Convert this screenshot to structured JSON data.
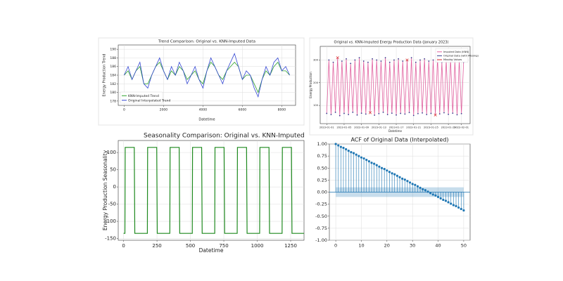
{
  "chart_data": [
    {
      "type": "line",
      "title": "Trend Comparison: Original vs. KNN-Imputed Data",
      "xlabel": "Datetime",
      "ylabel": "Energy Production Trend",
      "x": [
        0,
        200,
        400,
        600,
        800,
        1000,
        1200,
        1400,
        1600,
        1800,
        2000,
        2200,
        2400,
        2600,
        2800,
        3000,
        3200,
        3400,
        3600,
        3800,
        4000,
        4200,
        4400,
        4600,
        4800,
        5000,
        5200,
        5400,
        5600,
        5800,
        6000,
        6200,
        6400,
        6600,
        6800,
        7000,
        7200,
        7400,
        7600,
        7800,
        8000,
        8200,
        8400
      ],
      "series": [
        {
          "name": "KNN-Imputed Trend",
          "color": "#2ca02c",
          "values": [
            184,
            185,
            183,
            185,
            186,
            182,
            182,
            184,
            186,
            187,
            185,
            183,
            185,
            184,
            186,
            185,
            183,
            184,
            185,
            183,
            182,
            185,
            187,
            186,
            184,
            183,
            185,
            186,
            187,
            186,
            183,
            184,
            184,
            182,
            180,
            183,
            185,
            184,
            186,
            187,
            185,
            185,
            184
          ]
        },
        {
          "name": "Original Interpolated Trend",
          "color": "#3346d3",
          "values": [
            184,
            186,
            183,
            185,
            187,
            182,
            181,
            184,
            186,
            188,
            185,
            183,
            186,
            184,
            187,
            185,
            182,
            184,
            186,
            183,
            181,
            185,
            188,
            186,
            184,
            182,
            185,
            187,
            189,
            186,
            183,
            185,
            184,
            181,
            179,
            183,
            186,
            184,
            187,
            188,
            185,
            186,
            184
          ]
        }
      ],
      "xlim": [
        -300,
        8700
      ],
      "xticks": [
        0,
        2000,
        4000,
        6000,
        8000
      ],
      "ylim": [
        177,
        191
      ],
      "yticks": [
        178,
        180,
        182,
        184,
        186,
        188,
        190
      ],
      "grid": true,
      "legend": "lower left"
    },
    {
      "type": "line",
      "title": "Original vs. KNN-Imputed Energy Production Data (January 2023)",
      "xlabel": "Datetime",
      "ylabel": "Energy Production",
      "x": [
        0,
        0.5,
        1,
        1.5,
        2,
        2.5,
        3,
        3.5,
        4,
        4.5,
        5,
        5.5,
        6,
        6.5,
        7,
        7.5,
        8,
        8.5,
        9,
        9.5,
        10,
        10.5,
        11,
        11.5,
        12,
        12.5,
        13,
        13.5,
        14,
        14.5,
        15,
        15.5,
        16,
        16.5,
        17,
        17.5,
        18,
        18.5,
        19,
        19.5,
        20,
        20.5,
        21,
        21.5,
        22,
        22.5,
        23,
        23.5,
        24,
        24.5,
        25,
        25.5,
        26,
        26.5,
        27,
        27.5,
        28,
        28.5,
        29,
        29.5,
        30,
        30.5,
        31,
        31.5
      ],
      "series": [
        {
          "name": "Imputed Data (KNN)",
          "color": "#e0609e",
          "style": "line",
          "values": [
            65,
            300,
            60,
            290,
            70,
            310,
            55,
            295,
            65,
            305,
            60,
            285,
            70,
            300,
            58,
            310,
            66,
            295,
            62,
            290,
            68,
            305,
            57,
            300,
            64,
            295,
            70,
            310,
            60,
            290,
            66,
            300,
            58,
            305,
            65,
            295,
            62,
            300,
            69,
            310,
            56,
            290,
            64,
            300,
            67,
            305,
            60,
            295,
            65,
            300,
            58,
            310,
            63,
            290,
            68,
            300,
            61,
            305,
            66,
            295,
            59,
            300,
            64,
            290
          ]
        },
        {
          "name": "Original Data (with Missing)",
          "color": "#3b3f8f",
          "style": "dots",
          "values": [
            65,
            300,
            60,
            290,
            70,
            null,
            55,
            295,
            65,
            305,
            60,
            285,
            70,
            300,
            58,
            310,
            66,
            295,
            62,
            290,
            null,
            305,
            57,
            300,
            64,
            295,
            70,
            310,
            60,
            290,
            66,
            300,
            58,
            305,
            65,
            295,
            62,
            null,
            69,
            310,
            56,
            290,
            64,
            300,
            67,
            305,
            60,
            295,
            65,
            300,
            null,
            310,
            63,
            290,
            68,
            300,
            61,
            305,
            66,
            295,
            59,
            300,
            64,
            290
          ]
        },
        {
          "name": "Missing Values",
          "color": "#d62728",
          "style": "x",
          "values": [
            null,
            null,
            null,
            null,
            null,
            310,
            null,
            null,
            null,
            null,
            null,
            null,
            null,
            null,
            null,
            null,
            null,
            null,
            null,
            null,
            68,
            null,
            null,
            null,
            null,
            null,
            null,
            null,
            null,
            null,
            null,
            null,
            null,
            null,
            null,
            null,
            null,
            300,
            null,
            null,
            null,
            null,
            null,
            null,
            null,
            null,
            null,
            null,
            null,
            null,
            58,
            null,
            null,
            null,
            null,
            null,
            null,
            null,
            null,
            null,
            null,
            null,
            null,
            null
          ]
        }
      ],
      "xlim": [
        -1.5,
        33
      ],
      "xticks": [
        {
          "value": 0,
          "label": "2023-01-01"
        },
        {
          "value": 4,
          "label": "2023-01-05"
        },
        {
          "value": 8,
          "label": "2023-01-09"
        },
        {
          "value": 12,
          "label": "2023-01-13"
        },
        {
          "value": 16,
          "label": "2023-01-17"
        },
        {
          "value": 20,
          "label": "2023-01-21"
        },
        {
          "value": 24,
          "label": "2023-01-25"
        },
        {
          "value": 28,
          "label": "2023-01-29"
        },
        {
          "value": 31,
          "label": "2023-02-01"
        }
      ],
      "ylim": [
        20,
        360
      ],
      "yticks": [
        100,
        200,
        300
      ],
      "grid": true,
      "legend": "upper right"
    },
    {
      "type": "line",
      "title": "Seasonality Comparison: Original vs. KNN-Imputed D",
      "xlabel": "Datetime",
      "ylabel": "Energy Production Seasonality",
      "x": [
        0,
        10,
        12,
        80,
        84,
        178,
        180,
        248,
        252,
        346,
        348,
        416,
        420,
        514,
        516,
        584,
        588,
        682,
        684,
        752,
        756,
        850,
        852,
        920,
        924,
        1018,
        1020,
        1088,
        1092,
        1186,
        1188,
        1256,
        1260,
        1350
      ],
      "series": [
        {
          "color": "#1f8a1f",
          "values": [
            -135,
            -135,
            115,
            115,
            -135,
            -135,
            115,
            115,
            -135,
            -135,
            115,
            115,
            -135,
            -135,
            115,
            115,
            -135,
            -135,
            115,
            115,
            -135,
            -135,
            115,
            115,
            -135,
            -135,
            115,
            115,
            -135,
            -135,
            115,
            115,
            -135,
            -135
          ]
        }
      ],
      "xlim": [
        -40,
        1350
      ],
      "xticks": [
        0,
        250,
        500,
        750,
        1000,
        1250
      ],
      "ylim": [
        -155,
        135
      ],
      "yticks": [
        -150,
        -100,
        -50,
        0,
        50,
        100
      ],
      "grid": true
    },
    {
      "type": "stem",
      "title": "ACF of Original Data (Interpolated)",
      "x": [
        0,
        1,
        2,
        3,
        4,
        5,
        6,
        7,
        8,
        9,
        10,
        11,
        12,
        13,
        14,
        15,
        16,
        17,
        18,
        19,
        20,
        21,
        22,
        23,
        24,
        25,
        26,
        27,
        28,
        29,
        30,
        31,
        32,
        33,
        34,
        35,
        36,
        37,
        38,
        39,
        40,
        41,
        42,
        43,
        44,
        45,
        46,
        47,
        48,
        49,
        50
      ],
      "values": [
        1.0,
        0.97,
        0.94,
        0.92,
        0.89,
        0.86,
        0.83,
        0.81,
        0.78,
        0.75,
        0.72,
        0.7,
        0.67,
        0.64,
        0.61,
        0.59,
        0.56,
        0.53,
        0.5,
        0.48,
        0.45,
        0.42,
        0.39,
        0.37,
        0.34,
        0.31,
        0.28,
        0.26,
        0.23,
        0.2,
        0.17,
        0.15,
        0.12,
        0.09,
        0.06,
        0.04,
        0.01,
        -0.02,
        -0.05,
        -0.07,
        -0.1,
        -0.13,
        -0.16,
        -0.18,
        -0.21,
        -0.24,
        -0.27,
        -0.29,
        -0.32,
        -0.35,
        -0.38
      ],
      "color": "#1f77b4",
      "confidence_band": [
        -0.1,
        0.1
      ],
      "xlim": [
        -2.5,
        52.5
      ],
      "xticks": [
        0,
        10,
        20,
        30,
        40,
        50
      ],
      "ylim": [
        -1,
        1
      ],
      "yticks": [
        {
          "value": -1,
          "label": "-1.00"
        },
        {
          "value": -0.75,
          "label": "-0.75"
        },
        {
          "value": -0.5,
          "label": "-0.50"
        },
        {
          "value": -0.25,
          "label": "-0.25"
        },
        {
          "value": 0,
          "label": "0.00"
        },
        {
          "value": 0.25,
          "label": "0.25"
        },
        {
          "value": 0.5,
          "label": "0.50"
        },
        {
          "value": 0.75,
          "label": "0.75"
        },
        {
          "value": 1,
          "label": "1.00"
        }
      ],
      "grid": true
    }
  ]
}
